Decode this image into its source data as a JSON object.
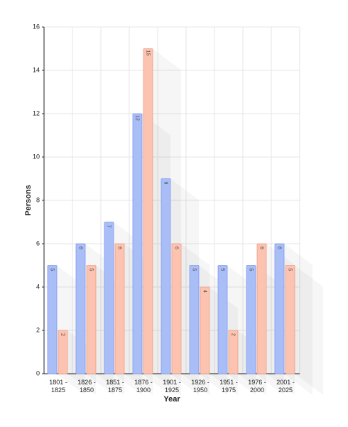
{
  "chart_data": {
    "type": "bar",
    "x_label": "Year",
    "y_label": "Persons",
    "categories": [
      "1801 - 1825",
      "1826 - 1850",
      "1851 - 1875",
      "1876 - 1900",
      "1901 - 1925",
      "1926 - 1950",
      "1951 - 1975",
      "1976 - 2000",
      "2001 - 2025"
    ],
    "series": [
      {
        "color": "#a9bdf7",
        "values": [
          5,
          6,
          7,
          12,
          9,
          5,
          5,
          5,
          6
        ]
      },
      {
        "color": "#fcc3b0",
        "values": [
          2,
          5,
          6,
          15,
          6,
          4,
          2,
          6,
          5
        ]
      }
    ],
    "ylim": [
      0,
      16
    ],
    "yticks": [
      0,
      2,
      4,
      6,
      8,
      10,
      12,
      14,
      16
    ],
    "grid": true
  }
}
